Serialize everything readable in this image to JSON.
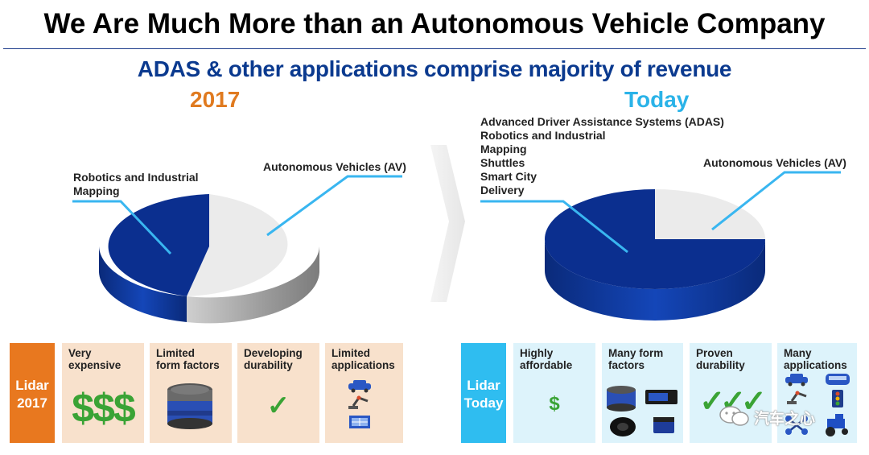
{
  "title": "We Are Much More than an Autonomous Vehicle Company",
  "subtitle": "ADAS & other applications comprise majority of revenue",
  "left": {
    "year": "2017",
    "labels": {
      "robotics_line1": "Robotics and Industrial",
      "robotics_line2": "Mapping",
      "av": "Autonomous Vehicles (AV)"
    },
    "pie_share_av": 0.53,
    "pie_share_other": 0.47
  },
  "right": {
    "year": "Today",
    "labels": {
      "list": [
        "Advanced Driver Assistance Systems (ADAS)",
        "Robotics and Industrial",
        "Mapping",
        "Shuttles",
        "Smart City",
        "Delivery"
      ],
      "av": "Autonomous Vehicles (AV)"
    },
    "pie_share_av": 0.25,
    "pie_share_other": 0.75
  },
  "lidar_2017": {
    "tag_line1": "Lidar",
    "tag_line2": "2017",
    "cards": [
      {
        "line1": "Very",
        "line2": "expensive",
        "symbol": "$$$"
      },
      {
        "line1": "Limited",
        "line2": "form factors"
      },
      {
        "line1": "Developing",
        "line2": "durability",
        "symbol": "✓"
      },
      {
        "line1": "Limited",
        "line2": "applications"
      }
    ]
  },
  "lidar_today": {
    "tag_line1": "Lidar",
    "tag_line2": "Today",
    "cards": [
      {
        "line1": "Highly",
        "line2": "affordable",
        "symbol": "$"
      },
      {
        "line1": "Many form",
        "line2": "factors"
      },
      {
        "line1": "Proven",
        "line2": "durability",
        "symbol": "✓✓✓"
      },
      {
        "line1": "Many",
        "line2": "applications"
      }
    ]
  },
  "colors": {
    "navy": "#0b2f8f",
    "pie_light": "#ebebeb",
    "orange": "#e8781f",
    "peach": "#f8e1cc",
    "cyan": "#2fbdf0",
    "light_cyan": "#ddf3fb",
    "green": "#3aa335"
  },
  "watermark": "汽车之心"
}
